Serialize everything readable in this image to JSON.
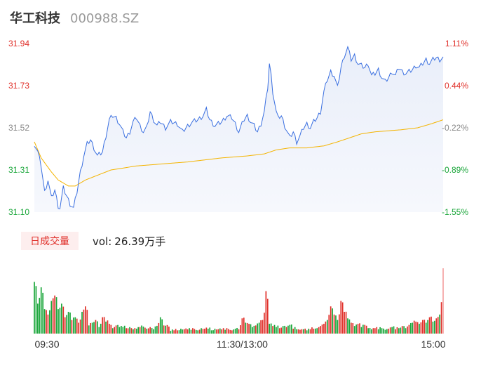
{
  "header": {
    "name": "华工科技",
    "code": "000988.SZ"
  },
  "volume_panel": {
    "badge": "日成交量",
    "vol_label": "vol:",
    "vol_value": "26.39万手"
  },
  "colors": {
    "price_line": "#3a6fe0",
    "avg_line": "#f4b400",
    "up": "#e0302a",
    "down": "#1aa63a",
    "neutral_text": "#888888",
    "area_fill": "#eef2fb"
  },
  "chart_data": [
    {
      "type": "line",
      "title": "",
      "y_left_ticks": [
        "31.94",
        "31.73",
        "31.52",
        "31.31",
        "31.10"
      ],
      "y_right_ticks": [
        "1.11%",
        "0.44%",
        "-0.22%",
        "-0.89%",
        "-1.55%"
      ],
      "x_ticks": [
        "09:30",
        "11:30/13:00",
        "15:00"
      ],
      "ylim": [
        31.1,
        31.94
      ],
      "n_points": 241,
      "price_anchors": [
        [
          0,
          31.44
        ],
        [
          2,
          31.4
        ],
        [
          4,
          31.33
        ],
        [
          6,
          31.2
        ],
        [
          8,
          31.26
        ],
        [
          10,
          31.17
        ],
        [
          12,
          31.21
        ],
        [
          14,
          31.13
        ],
        [
          15,
          31.12
        ],
        [
          17,
          31.22
        ],
        [
          19,
          31.18
        ],
        [
          21,
          31.14
        ],
        [
          23,
          31.12
        ],
        [
          25,
          31.2
        ],
        [
          27,
          31.3
        ],
        [
          29,
          31.38
        ],
        [
          31,
          31.44
        ],
        [
          33,
          31.46
        ],
        [
          35,
          31.42
        ],
        [
          37,
          31.38
        ],
        [
          40,
          31.4
        ],
        [
          42,
          31.48
        ],
        [
          44,
          31.56
        ],
        [
          46,
          31.58
        ],
        [
          48,
          31.57
        ],
        [
          50,
          31.54
        ],
        [
          52,
          31.5
        ],
        [
          54,
          31.47
        ],
        [
          56,
          31.5
        ],
        [
          58,
          31.55
        ],
        [
          60,
          31.57
        ],
        [
          62,
          31.53
        ],
        [
          64,
          31.5
        ],
        [
          66,
          31.52
        ],
        [
          68,
          31.6
        ],
        [
          70,
          31.56
        ],
        [
          72,
          31.53
        ],
        [
          74,
          31.55
        ],
        [
          77,
          31.52
        ],
        [
          80,
          31.55
        ],
        [
          84,
          31.54
        ],
        [
          87,
          31.5
        ],
        [
          90,
          31.53
        ],
        [
          93,
          31.55
        ],
        [
          96,
          31.56
        ],
        [
          99,
          31.58
        ],
        [
          101,
          31.61
        ],
        [
          103,
          31.56
        ],
        [
          106,
          31.53
        ],
        [
          110,
          31.55
        ],
        [
          113,
          31.58
        ],
        [
          116,
          31.57
        ],
        [
          118,
          31.54
        ],
        [
          120,
          31.5
        ],
        [
          121,
          31.52
        ],
        [
          123,
          31.56
        ],
        [
          125,
          31.58
        ],
        [
          127,
          31.55
        ],
        [
          129,
          31.53
        ],
        [
          131,
          31.5
        ],
        [
          133,
          31.54
        ],
        [
          135,
          31.6
        ],
        [
          137,
          31.72
        ],
        [
          138,
          31.84
        ],
        [
          139,
          31.78
        ],
        [
          140,
          31.7
        ],
        [
          142,
          31.6
        ],
        [
          143,
          31.57
        ],
        [
          145,
          31.58
        ],
        [
          147,
          31.53
        ],
        [
          148,
          31.51
        ],
        [
          150,
          31.47
        ],
        [
          152,
          31.5
        ],
        [
          154,
          31.45
        ],
        [
          156,
          31.48
        ],
        [
          158,
          31.52
        ],
        [
          160,
          31.54
        ],
        [
          162,
          31.52
        ],
        [
          164,
          31.55
        ],
        [
          166,
          31.57
        ],
        [
          168,
          31.6
        ],
        [
          170,
          31.7
        ],
        [
          172,
          31.76
        ],
        [
          174,
          31.8
        ],
        [
          176,
          31.78
        ],
        [
          178,
          31.72
        ],
        [
          180,
          31.82
        ],
        [
          182,
          31.88
        ],
        [
          184,
          31.92
        ],
        [
          186,
          31.86
        ],
        [
          188,
          31.88
        ],
        [
          190,
          31.84
        ],
        [
          192,
          31.83
        ],
        [
          194,
          31.82
        ],
        [
          196,
          31.84
        ],
        [
          198,
          31.78
        ],
        [
          200,
          31.79
        ],
        [
          202,
          31.81
        ],
        [
          204,
          31.77
        ],
        [
          206,
          31.75
        ],
        [
          208,
          31.77
        ],
        [
          210,
          31.8
        ],
        [
          212,
          31.78
        ],
        [
          214,
          31.82
        ],
        [
          216,
          31.8
        ],
        [
          218,
          31.79
        ],
        [
          220,
          31.8
        ],
        [
          222,
          31.81
        ],
        [
          224,
          31.83
        ],
        [
          226,
          31.82
        ],
        [
          228,
          31.84
        ],
        [
          230,
          31.86
        ],
        [
          232,
          31.84
        ],
        [
          234,
          31.86
        ],
        [
          236,
          31.87
        ],
        [
          238,
          31.86
        ],
        [
          240,
          31.87
        ]
      ],
      "avg_anchors": [
        [
          0,
          31.45
        ],
        [
          4,
          31.37
        ],
        [
          10,
          31.3
        ],
        [
          14,
          31.26
        ],
        [
          20,
          31.23
        ],
        [
          24,
          31.23
        ],
        [
          30,
          31.26
        ],
        [
          36,
          31.28
        ],
        [
          45,
          31.31
        ],
        [
          60,
          31.33
        ],
        [
          75,
          31.34
        ],
        [
          90,
          31.35
        ],
        [
          110,
          31.37
        ],
        [
          125,
          31.38
        ],
        [
          135,
          31.39
        ],
        [
          142,
          31.41
        ],
        [
          150,
          31.42
        ],
        [
          160,
          31.42
        ],
        [
          170,
          31.43
        ],
        [
          178,
          31.45
        ],
        [
          185,
          31.47
        ],
        [
          192,
          31.49
        ],
        [
          200,
          31.5
        ],
        [
          215,
          31.51
        ],
        [
          225,
          31.52
        ],
        [
          233,
          31.54
        ],
        [
          240,
          31.56
        ]
      ],
      "volume_anchors": [
        [
          0,
          95,
          "down"
        ],
        [
          2,
          55,
          "down"
        ],
        [
          4,
          85,
          "down"
        ],
        [
          6,
          45,
          "down"
        ],
        [
          8,
          35,
          "up"
        ],
        [
          10,
          60,
          "down"
        ],
        [
          12,
          70,
          "up"
        ],
        [
          14,
          45,
          "down"
        ],
        [
          16,
          55,
          "down"
        ],
        [
          18,
          30,
          "up"
        ],
        [
          20,
          40,
          "down"
        ],
        [
          22,
          25,
          "up"
        ],
        [
          24,
          30,
          "down"
        ],
        [
          26,
          20,
          "up"
        ],
        [
          28,
          40,
          "down"
        ],
        [
          30,
          50,
          "up"
        ],
        [
          32,
          15,
          "down"
        ],
        [
          34,
          20,
          "down"
        ],
        [
          36,
          25,
          "up"
        ],
        [
          38,
          12,
          "down"
        ],
        [
          40,
          30,
          "up"
        ],
        [
          42,
          22,
          "down"
        ],
        [
          44,
          18,
          "up"
        ],
        [
          46,
          10,
          "down"
        ],
        [
          48,
          15,
          "up"
        ],
        [
          50,
          12,
          "down"
        ],
        [
          54,
          10,
          "up"
        ],
        [
          58,
          8,
          "down"
        ],
        [
          62,
          12,
          "up"
        ],
        [
          66,
          9,
          "down"
        ],
        [
          70,
          8,
          "down"
        ],
        [
          74,
          30,
          "down"
        ],
        [
          76,
          15,
          "up"
        ],
        [
          80,
          5,
          "down"
        ],
        [
          84,
          6,
          "up"
        ],
        [
          88,
          8,
          "up"
        ],
        [
          92,
          7,
          "down"
        ],
        [
          96,
          6,
          "down"
        ],
        [
          100,
          9,
          "up"
        ],
        [
          104,
          6,
          "down"
        ],
        [
          108,
          8,
          "up"
        ],
        [
          112,
          7,
          "down"
        ],
        [
          116,
          6,
          "up"
        ],
        [
          118,
          9,
          "down"
        ],
        [
          120,
          8,
          "up"
        ],
        [
          122,
          28,
          "up"
        ],
        [
          124,
          20,
          "down"
        ],
        [
          126,
          18,
          "up"
        ],
        [
          128,
          12,
          "down"
        ],
        [
          130,
          15,
          "up"
        ],
        [
          132,
          20,
          "down"
        ],
        [
          134,
          25,
          "up"
        ],
        [
          136,
          78,
          "up"
        ],
        [
          138,
          18,
          "down"
        ],
        [
          140,
          14,
          "up"
        ],
        [
          142,
          12,
          "down"
        ],
        [
          144,
          10,
          "up"
        ],
        [
          146,
          14,
          "down"
        ],
        [
          148,
          12,
          "up"
        ],
        [
          150,
          16,
          "down"
        ],
        [
          152,
          9,
          "up"
        ],
        [
          154,
          8,
          "down"
        ],
        [
          156,
          7,
          "up"
        ],
        [
          158,
          8,
          "down"
        ],
        [
          160,
          6,
          "down"
        ],
        [
          162,
          8,
          "up"
        ],
        [
          164,
          9,
          "up"
        ],
        [
          166,
          10,
          "down"
        ],
        [
          168,
          14,
          "up"
        ],
        [
          170,
          18,
          "up"
        ],
        [
          172,
          25,
          "down"
        ],
        [
          174,
          50,
          "up"
        ],
        [
          176,
          35,
          "up"
        ],
        [
          178,
          25,
          "down"
        ],
        [
          180,
          60,
          "up"
        ],
        [
          182,
          40,
          "up"
        ],
        [
          184,
          28,
          "down"
        ],
        [
          186,
          20,
          "up"
        ],
        [
          188,
          14,
          "down"
        ],
        [
          190,
          18,
          "up"
        ],
        [
          192,
          12,
          "down"
        ],
        [
          194,
          16,
          "up"
        ],
        [
          196,
          10,
          "down"
        ],
        [
          198,
          8,
          "down"
        ],
        [
          200,
          10,
          "up"
        ],
        [
          202,
          8,
          "down"
        ],
        [
          204,
          10,
          "down"
        ],
        [
          206,
          7,
          "down"
        ],
        [
          208,
          9,
          "up"
        ],
        [
          210,
          12,
          "down"
        ],
        [
          212,
          8,
          "up"
        ],
        [
          214,
          10,
          "down"
        ],
        [
          216,
          14,
          "up"
        ],
        [
          218,
          10,
          "down"
        ],
        [
          220,
          16,
          "up"
        ],
        [
          222,
          20,
          "down"
        ],
        [
          224,
          22,
          "up"
        ],
        [
          226,
          18,
          "down"
        ],
        [
          228,
          25,
          "up"
        ],
        [
          230,
          20,
          "down"
        ],
        [
          232,
          30,
          "up"
        ],
        [
          234,
          22,
          "down"
        ],
        [
          236,
          28,
          "up"
        ],
        [
          238,
          35,
          "down"
        ],
        [
          240,
          120,
          "up"
        ]
      ]
    }
  ]
}
